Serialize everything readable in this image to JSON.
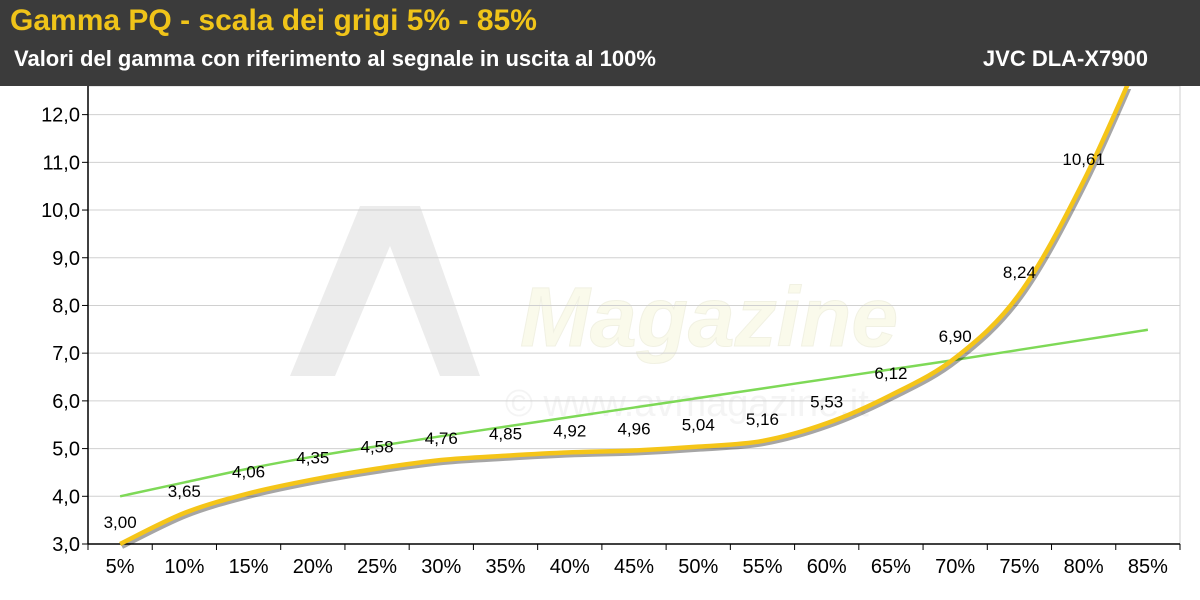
{
  "header": {
    "title": "Gamma PQ - scala dei grigi 5% - 85%",
    "subtitle": "Valori del gamma con riferimento al segnale in uscita al 100%",
    "model": "JVC DLA-X7900"
  },
  "watermark": {
    "brand": "Magazine",
    "site": "© www.avmagazine.it"
  },
  "colors": {
    "header_bg": "#3b3b3b",
    "title": "#f0c419",
    "measured": "#f5c518",
    "reference": "#7ed957",
    "grid": "#d0d0d0"
  },
  "chart_data": {
    "type": "line",
    "title": "Gamma PQ - scala dei grigi 5% - 85%",
    "categories": [
      "5%",
      "10%",
      "15%",
      "20%",
      "25%",
      "30%",
      "35%",
      "40%",
      "45%",
      "50%",
      "55%",
      "60%",
      "65%",
      "70%",
      "75%",
      "80%",
      "85%"
    ],
    "ylim": [
      3.0,
      12.6
    ],
    "yticks": [
      3.0,
      4.0,
      5.0,
      6.0,
      7.0,
      8.0,
      9.0,
      10.0,
      11.0,
      12.0
    ],
    "ytick_labels": [
      "3,0",
      "4,0",
      "5,0",
      "6,0",
      "7,0",
      "8,0",
      "9,0",
      "10,0",
      "11,0",
      "12,0"
    ],
    "grid": true,
    "series": [
      {
        "color": "#f5c518",
        "values": [
          3.0,
          3.65,
          4.06,
          4.35,
          4.58,
          4.76,
          4.85,
          4.92,
          4.96,
          5.04,
          5.16,
          5.53,
          6.12,
          6.9,
          8.24,
          10.61,
          13.6
        ],
        "labels": [
          "3,00",
          "3,65",
          "4,06",
          "4,35",
          "4,58",
          "4,76",
          "4,85",
          "4,92",
          "4,96",
          "5,04",
          "5,16",
          "5,53",
          "6,12",
          "6,90",
          "8,24",
          "10,61",
          ""
        ]
      },
      {
        "color": "#7ed957",
        "values": [
          4.0,
          4.29,
          4.58,
          4.83,
          5.05,
          5.26,
          5.46,
          5.66,
          5.86,
          6.06,
          6.26,
          6.46,
          6.66,
          6.86,
          7.07,
          7.28,
          7.49
        ]
      }
    ]
  }
}
